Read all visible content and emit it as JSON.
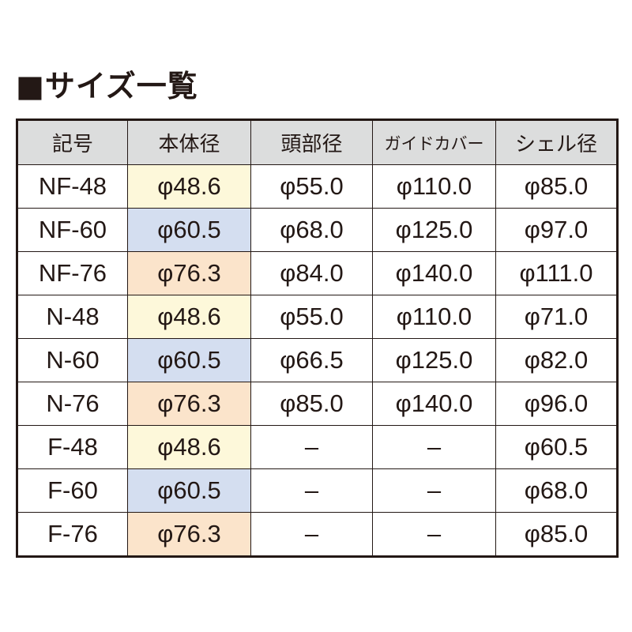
{
  "title": "■サイズ一覧",
  "table": {
    "header": [
      "記号",
      "本体径",
      "頭部径",
      "ガイドカバー",
      "シェル径"
    ],
    "rows": [
      [
        "NF-48",
        "φ48.6",
        "φ55.0",
        "φ110.0",
        "φ85.0"
      ],
      [
        "NF-60",
        "φ60.5",
        "φ68.0",
        "φ125.0",
        "φ97.0"
      ],
      [
        "NF-76",
        "φ76.3",
        "φ84.0",
        "φ140.0",
        "φ111.0"
      ],
      [
        "N-48",
        "φ48.6",
        "φ55.0",
        "φ110.0",
        "φ71.0"
      ],
      [
        "N-60",
        "φ60.5",
        "φ66.5",
        "φ125.0",
        "φ82.0"
      ],
      [
        "N-76",
        "φ76.3",
        "φ85.0",
        "φ140.0",
        "φ96.0"
      ],
      [
        "F-48",
        "φ48.6",
        "–",
        "–",
        "φ60.5"
      ],
      [
        "F-60",
        "φ60.5",
        "–",
        "–",
        "φ68.0"
      ],
      [
        "F-76",
        "φ76.3",
        "–",
        "–",
        "φ85.0"
      ]
    ]
  }
}
